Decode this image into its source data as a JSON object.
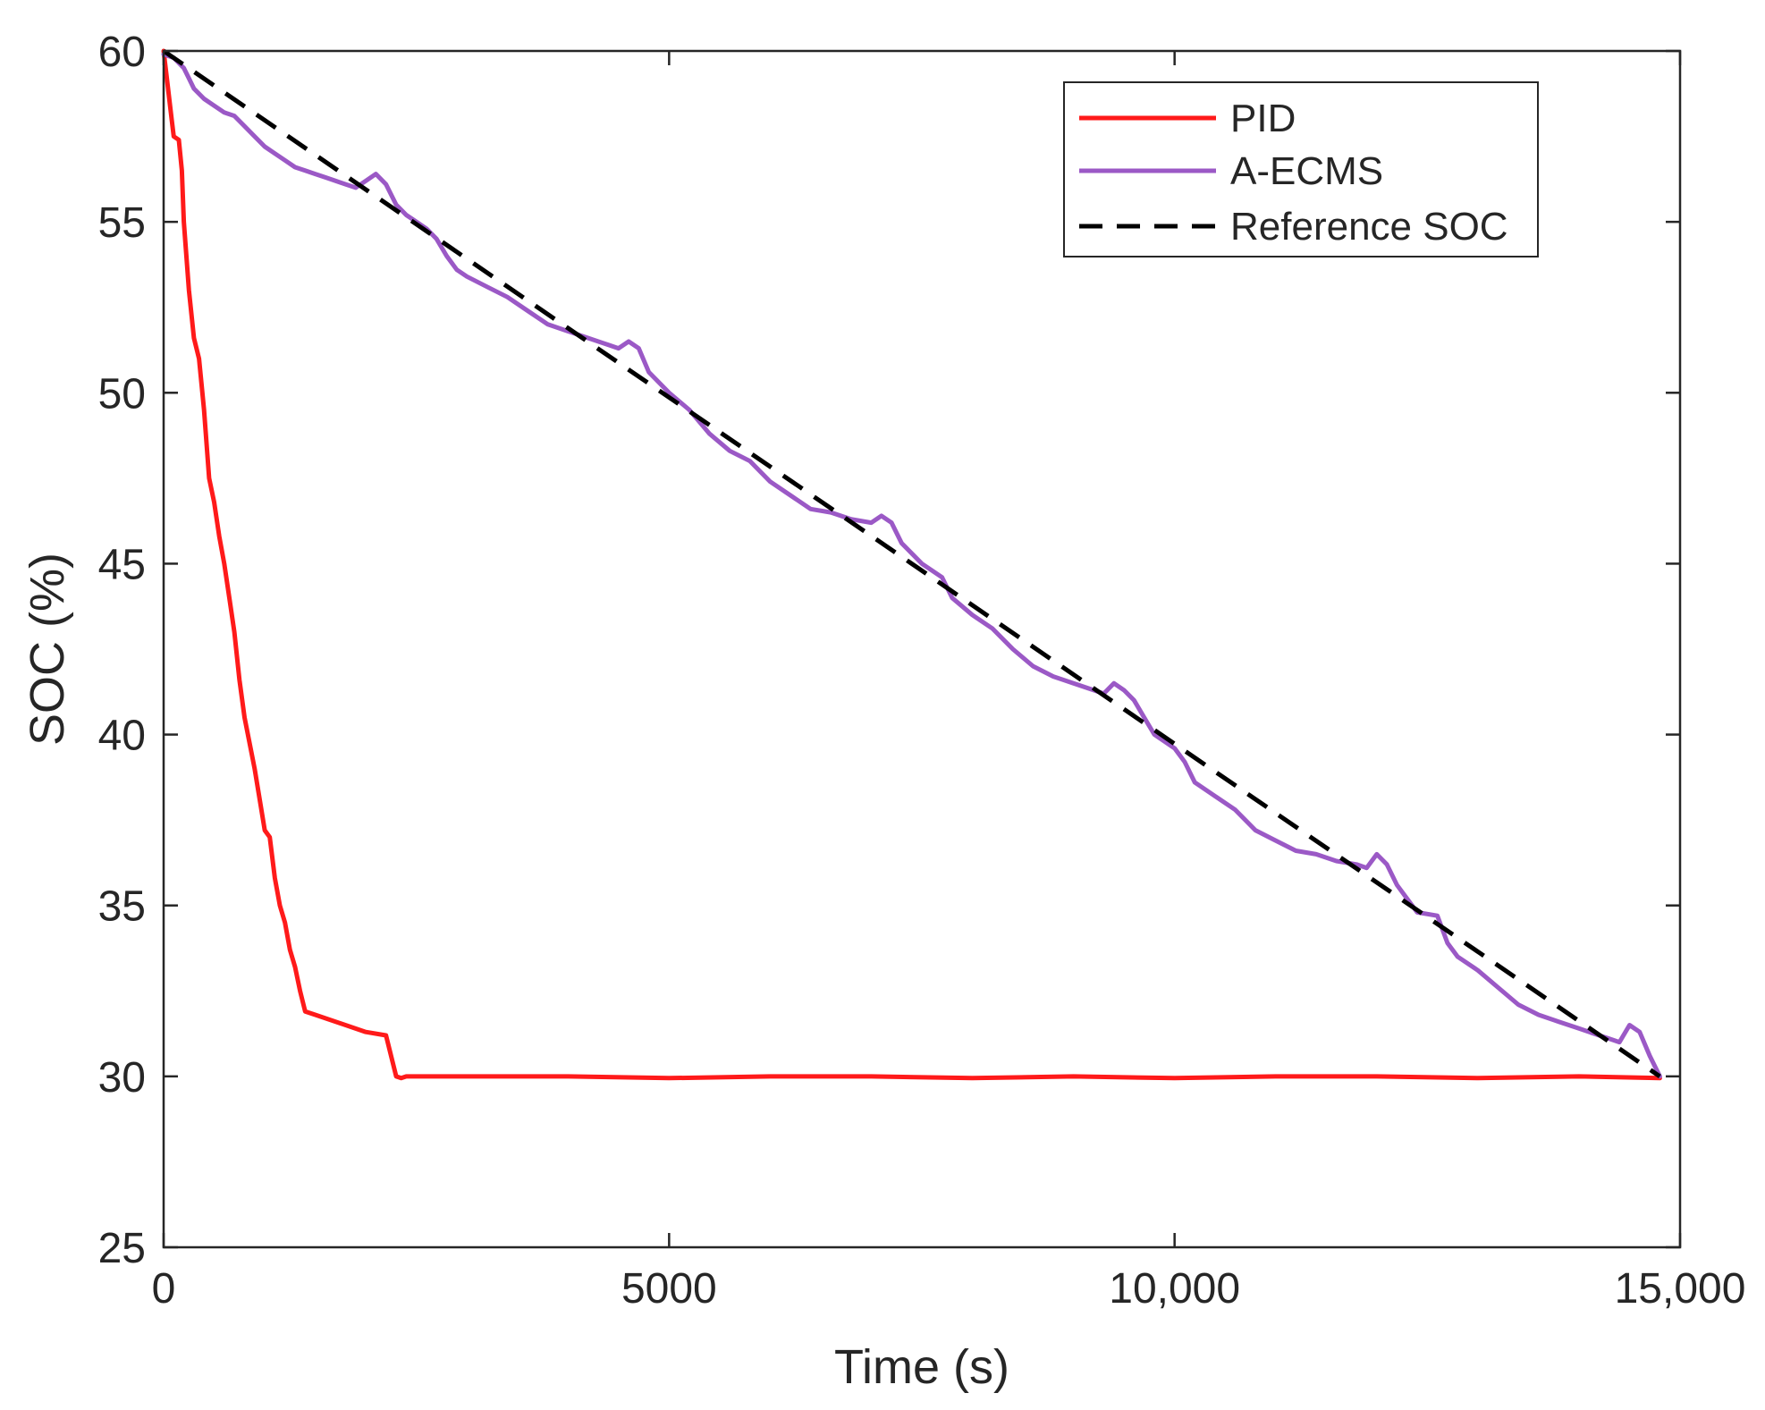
{
  "chart_data": {
    "type": "line",
    "xlabel": "Time (s)",
    "ylabel": "SOC (%)",
    "xlim": [
      0,
      15000
    ],
    "ylim": [
      25,
      60
    ],
    "xticks": [
      0,
      5000,
      10000,
      15000
    ],
    "xtick_labels": [
      "0",
      "5000",
      "10,000",
      "15,000"
    ],
    "yticks": [
      25,
      30,
      35,
      40,
      45,
      50,
      55,
      60
    ],
    "ytick_labels": [
      "25",
      "30",
      "35",
      "40",
      "45",
      "50",
      "55",
      "60"
    ],
    "grid": false,
    "legend_position": "top-right",
    "series": [
      {
        "name": "PID",
        "color": "#ff1a1a",
        "style": "solid",
        "x": [
          0,
          40,
          80,
          100,
          150,
          180,
          200,
          250,
          300,
          350,
          400,
          450,
          500,
          550,
          600,
          650,
          700,
          750,
          800,
          900,
          1000,
          1050,
          1100,
          1150,
          1200,
          1250,
          1300,
          1350,
          1400,
          1500,
          2000,
          2200,
          2300,
          2350,
          2400,
          3000,
          4000,
          5000,
          6000,
          7000,
          8000,
          9000,
          10000,
          11000,
          12000,
          13000,
          14000,
          14800
        ],
        "y": [
          60,
          59.0,
          58.0,
          57.5,
          57.4,
          56.5,
          55.0,
          53.0,
          51.6,
          51.0,
          49.5,
          47.5,
          46.8,
          45.8,
          45.0,
          44.0,
          43.0,
          41.6,
          40.5,
          39.0,
          37.2,
          37.0,
          35.8,
          35.0,
          34.5,
          33.7,
          33.2,
          32.5,
          31.9,
          31.8,
          31.3,
          31.2,
          30.0,
          29.95,
          30.0,
          30.0,
          30.0,
          29.95,
          30.0,
          30.0,
          29.95,
          30.0,
          29.95,
          30.0,
          30.0,
          29.95,
          30.0,
          29.95
        ]
      },
      {
        "name": "A-ECMS",
        "color": "#9b59c6",
        "style": "solid",
        "x": [
          0,
          100,
          200,
          250,
          300,
          400,
          500,
          600,
          700,
          800,
          900,
          1000,
          1100,
          1200,
          1300,
          1400,
          1500,
          1600,
          1700,
          1800,
          1900,
          2000,
          2100,
          2200,
          2300,
          2400,
          2500,
          2600,
          2700,
          2800,
          2900,
          3000,
          3200,
          3400,
          3600,
          3800,
          4000,
          4200,
          4400,
          4500,
          4600,
          4700,
          4800,
          5000,
          5200,
          5400,
          5600,
          5800,
          6000,
          6200,
          6400,
          6600,
          6800,
          7000,
          7100,
          7200,
          7300,
          7500,
          7700,
          7800,
          8000,
          8200,
          8400,
          8600,
          8800,
          9000,
          9200,
          9300,
          9400,
          9500,
          9600,
          9700,
          9800,
          10000,
          10100,
          10200,
          10400,
          10600,
          10800,
          11000,
          11200,
          11400,
          11600,
          11800,
          11900,
          12000,
          12100,
          12200,
          12300,
          12400,
          12600,
          12700,
          12800,
          13000,
          13200,
          13400,
          13600,
          13800,
          14000,
          14200,
          14300,
          14400,
          14500,
          14600,
          14700,
          14800
        ],
        "y": [
          59.9,
          59.8,
          59.5,
          59.2,
          58.9,
          58.6,
          58.4,
          58.2,
          58.1,
          57.8,
          57.5,
          57.2,
          57.0,
          56.8,
          56.6,
          56.5,
          56.4,
          56.3,
          56.2,
          56.1,
          56.0,
          56.2,
          56.4,
          56.1,
          55.5,
          55.2,
          55.0,
          54.8,
          54.5,
          54.0,
          53.6,
          53.4,
          53.1,
          52.8,
          52.4,
          52.0,
          51.8,
          51.6,
          51.4,
          51.3,
          51.5,
          51.3,
          50.6,
          50.0,
          49.5,
          48.8,
          48.3,
          48.0,
          47.4,
          47.0,
          46.6,
          46.5,
          46.3,
          46.2,
          46.4,
          46.2,
          45.6,
          45.0,
          44.6,
          44.0,
          43.5,
          43.1,
          42.5,
          42.0,
          41.7,
          41.5,
          41.3,
          41.2,
          41.5,
          41.3,
          41.0,
          40.5,
          40.0,
          39.6,
          39.2,
          38.6,
          38.2,
          37.8,
          37.2,
          36.9,
          36.6,
          36.5,
          36.3,
          36.2,
          36.1,
          36.5,
          36.2,
          35.6,
          35.2,
          34.8,
          34.7,
          33.9,
          33.5,
          33.1,
          32.6,
          32.1,
          31.8,
          31.6,
          31.4,
          31.2,
          31.1,
          31.0,
          31.5,
          31.3,
          30.6,
          30.0
        ]
      },
      {
        "name": "Reference SOC",
        "color": "#000000",
        "style": "dashed",
        "x": [
          0,
          14800
        ],
        "y": [
          60,
          30
        ]
      }
    ]
  }
}
